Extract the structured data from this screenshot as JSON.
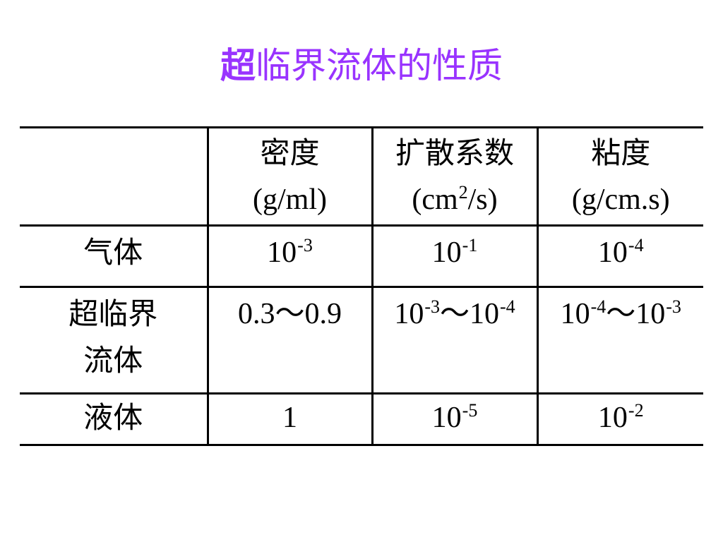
{
  "title": {
    "first": "超",
    "rest": "临界流体的性质",
    "color": "#9933ff"
  },
  "table": {
    "headers": [
      {
        "label": "",
        "unit": ""
      },
      {
        "label": "密度",
        "unit": "(g/ml)"
      },
      {
        "label": "扩散系数",
        "unit_pre": "(cm",
        "unit_sup": "2",
        "unit_post": "/s)"
      },
      {
        "label": "粘度",
        "unit": "(g/cm.s)"
      }
    ],
    "rows": [
      {
        "name": "气体",
        "density": {
          "base": "10",
          "exp": "-3"
        },
        "diffusion": {
          "base": "10",
          "exp": "-1"
        },
        "viscosity": {
          "base": "10",
          "exp": "-4"
        }
      },
      {
        "name_line1": "超临界",
        "name_line2": "流体",
        "density": "0.3～0.9",
        "diffusion": {
          "a": "10",
          "ae": "-3",
          "sep": "～",
          "b": "10",
          "be": "-4"
        },
        "viscosity": {
          "a": "10",
          "ae": "-4",
          "sep": "～",
          "b": "10",
          "be": "-3"
        }
      },
      {
        "name": "液体",
        "density": "1",
        "diffusion": {
          "base": "10",
          "exp": "-5"
        },
        "viscosity": {
          "base": "10",
          "exp": "-2"
        }
      }
    ]
  }
}
